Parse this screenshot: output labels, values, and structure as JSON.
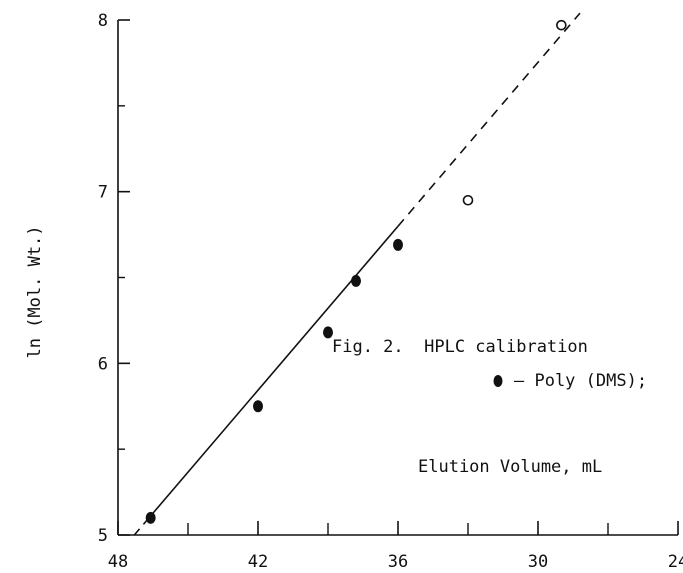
{
  "chart_data": {
    "type": "scatter",
    "title": "",
    "caption_lines": [
      "Fig. 2.  HPLC calibration",
      "– Poly (DMS);"
    ],
    "xlabel": "Elution Volume, mL",
    "ylabel": "ln (Mol. Wt.)",
    "xlim": [
      48,
      24
    ],
    "ylim": [
      5,
      8
    ],
    "x_ticks": [
      48,
      42,
      36,
      30,
      24
    ],
    "y_ticks": [
      5,
      6,
      7,
      8
    ],
    "grid": false,
    "series": [
      {
        "name": "Poly (DMS)",
        "marker": "filled-circle",
        "x": [
          46.6,
          42.0,
          39.0,
          37.8,
          36.0
        ],
        "y": [
          5.1,
          5.75,
          6.18,
          6.48,
          6.69
        ]
      },
      {
        "marker": "open-circle",
        "x": [
          33.0,
          29.0
        ],
        "y": [
          6.95,
          7.97
        ]
      }
    ],
    "fit_line": {
      "solid_segment": {
        "x": [
          46.6,
          36.0
        ]
      },
      "dashed_segment": {
        "x": [
          36.0,
          28.2
        ]
      },
      "endpoints": {
        "x": [
          47.3,
          28.2
        ],
        "y": [
          5.0,
          8.04
        ]
      }
    }
  }
}
